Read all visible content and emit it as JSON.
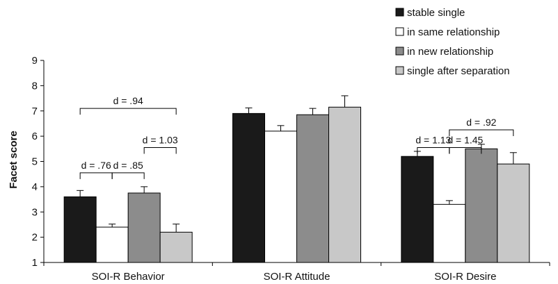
{
  "chart_data": {
    "type": "bar",
    "title": "",
    "xlabel": "",
    "ylabel": "Facet score",
    "ylim": [
      1,
      9
    ],
    "yticks": [
      1,
      2,
      3,
      4,
      5,
      6,
      7,
      8,
      9
    ],
    "grid": false,
    "legend_position": "top-right",
    "categories": [
      "SOI-R Behavior",
      "SOI-R Attitude",
      "SOI-R Desire"
    ],
    "series": [
      {
        "name": "stable single",
        "color": "#1a1a1a",
        "values": [
          3.6,
          6.9,
          5.2
        ],
        "errors": [
          0.25,
          0.22,
          0.2
        ]
      },
      {
        "name": "in same relationship",
        "color": "#ffffff",
        "values": [
          2.4,
          6.2,
          3.3
        ],
        "errors": [
          0.12,
          0.22,
          0.15
        ]
      },
      {
        "name": "in new relationship",
        "color": "#8c8c8c",
        "values": [
          3.75,
          6.85,
          5.5
        ],
        "errors": [
          0.25,
          0.25,
          0.18
        ]
      },
      {
        "name": "single after separation",
        "color": "#c8c8c8",
        "values": [
          2.2,
          7.15,
          4.9
        ],
        "errors": [
          0.32,
          0.45,
          0.45
        ]
      }
    ],
    "annotations": [
      {
        "text": "d = .94",
        "category": 0,
        "from_series": 0,
        "to_series": 3,
        "y": 7.1
      },
      {
        "text": "d = 1.03",
        "category": 0,
        "from_series": 2,
        "to_series": 3,
        "y": 5.55
      },
      {
        "text": "d = .76",
        "category": 0,
        "from_series": 0,
        "to_series": 1,
        "y": 4.55
      },
      {
        "text": "d = .85",
        "category": 0,
        "from_series": 1,
        "to_series": 2,
        "y": 4.55
      },
      {
        "text": "d = .92",
        "category": 2,
        "from_series": 1,
        "to_series": 3,
        "y": 6.25
      },
      {
        "text": "d = 1.13",
        "category": 2,
        "from_series": 0,
        "to_series": 1,
        "y": 5.55
      },
      {
        "text": "d = 1.45",
        "category": 2,
        "from_series": 1,
        "to_series": 2,
        "y": 5.55
      }
    ]
  }
}
